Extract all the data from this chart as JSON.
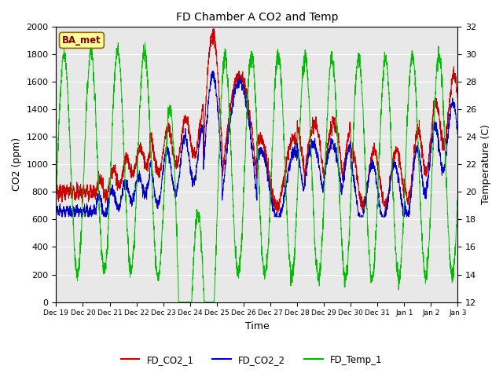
{
  "title": "FD Chamber A CO2 and Temp",
  "xlabel": "Time",
  "ylabel_left": "CO2 (ppm)",
  "ylabel_right": "Temperature (C)",
  "co2_ylim": [
    0,
    2000
  ],
  "temp_ylim": [
    12,
    32
  ],
  "co2_yticks": [
    0,
    200,
    400,
    600,
    800,
    1000,
    1200,
    1400,
    1600,
    1800,
    2000
  ],
  "temp_yticks": [
    12,
    14,
    16,
    18,
    20,
    22,
    24,
    26,
    28,
    30,
    32
  ],
  "color_co2_1": "#cc0000",
  "color_co2_2": "#0000cc",
  "color_temp": "#00bb00",
  "bg_color": "#e8e8e8",
  "annotation_text": "BA_met",
  "annotation_bg": "#ffff99",
  "annotation_border": "#996600",
  "legend_entries": [
    "FD_CO2_1",
    "FD_CO2_2",
    "FD_Temp_1"
  ],
  "x_tick_labels": [
    "Dec 19",
    "Dec 20",
    "Dec 21",
    "Dec 22",
    "Dec 23",
    "Dec 24",
    "Dec 25",
    "Dec 26",
    "Dec 27",
    "Dec 28",
    "Dec 29",
    "Dec 30",
    "Dec 31",
    "Jan 1",
    "Jan 2",
    "Jan 3"
  ],
  "num_points": 3000,
  "seed": 7
}
